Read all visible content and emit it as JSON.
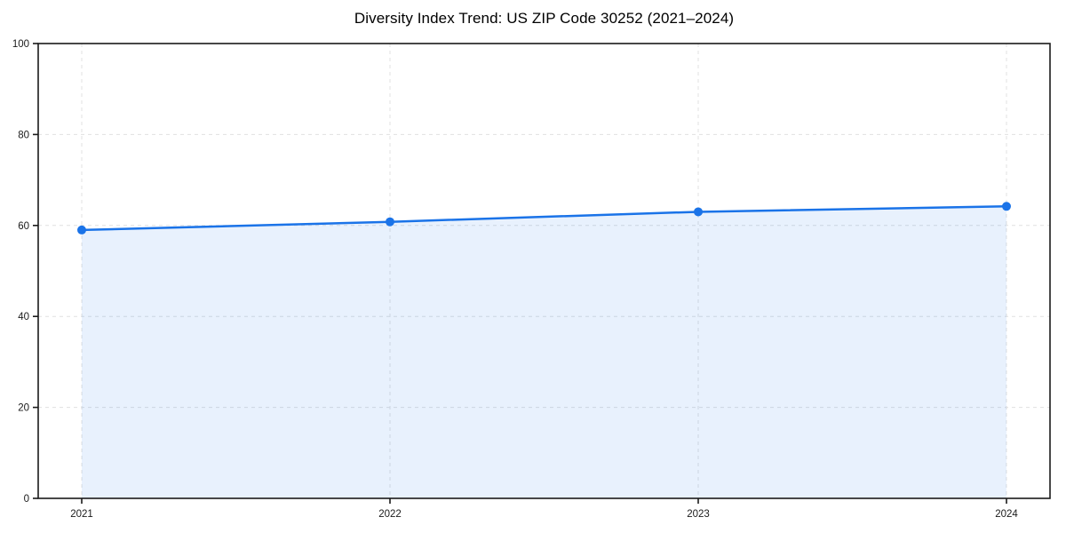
{
  "chart_data": {
    "type": "area",
    "title": "Diversity Index Trend: US ZIP Code 30252 (2021–2024)",
    "categories": [
      "2021",
      "2022",
      "2023",
      "2024"
    ],
    "series": [
      {
        "name": "Diversity Index",
        "values": [
          59,
          60.8,
          63,
          64.2
        ]
      }
    ],
    "xlabel": "",
    "ylabel": "",
    "ylim": [
      0,
      100
    ],
    "yticks": [
      0,
      20,
      40,
      60,
      80,
      100
    ],
    "grid": true,
    "grid_style": "dashed",
    "legend_position": "none",
    "marker": "circle",
    "colors": {
      "line": "#1a73e8",
      "marker": "#1a73e8",
      "fill": "rgba(26,115,232,0.10)",
      "grid": "#e0e0e0",
      "spine": "#1a1a1a",
      "tick_label": "#1a1a1a",
      "title": "#000000",
      "background": "#ffffff"
    }
  }
}
